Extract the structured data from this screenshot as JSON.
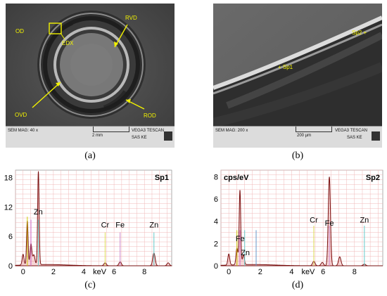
{
  "panels": {
    "a": {
      "caption": "(a)",
      "labels": {
        "od": "OD",
        "edx": "EDX",
        "rvd": "RVD",
        "ovd": "OVD",
        "rod": "ROD"
      },
      "bar": {
        "mag": "SEM MAG: 40 x",
        "scale": "2 mm",
        "device": "VEGA3 TESCAN",
        "lab": "SAS KE"
      }
    },
    "b": {
      "caption": "(b)",
      "labels": {
        "sp1": "+ Sp1",
        "sp2": "Sp2 +"
      },
      "bar": {
        "mag": "SEM MAG: 200 x",
        "scale": "200 µm",
        "device": "VEGA3 TESCAN",
        "lab": "SAS KE"
      }
    },
    "c": {
      "caption": "(c)"
    },
    "d": {
      "caption": "(d)"
    }
  },
  "chart_data": [
    {
      "type": "line",
      "panel": "c",
      "title": "Sp1",
      "xlabel": "keV",
      "ylabel": "",
      "xlim": [
        -0.5,
        9.8
      ],
      "ylim": [
        0,
        19.5
      ],
      "xticks": [
        0,
        2,
        4,
        6,
        8
      ],
      "yticks": [
        0,
        6,
        12,
        18
      ],
      "peaks": [
        {
          "x": 0.0,
          "y": 2.2,
          "w": 0.06
        },
        {
          "x": 0.28,
          "y": 9.0,
          "w": 0.05
        },
        {
          "x": 0.52,
          "y": 4.3,
          "w": 0.06
        },
        {
          "x": 0.71,
          "y": 2.0,
          "w": 0.07
        },
        {
          "x": 1.01,
          "y": 19.0,
          "w": 0.05
        },
        {
          "x": 5.41,
          "y": 0.6,
          "w": 0.08
        },
        {
          "x": 6.4,
          "y": 0.8,
          "w": 0.08
        },
        {
          "x": 8.63,
          "y": 2.6,
          "w": 0.08
        },
        {
          "x": 9.57,
          "y": 0.6,
          "w": 0.08
        }
      ],
      "element_labels": [
        {
          "text": "Zn",
          "x": 1.0,
          "y": 10.5
        },
        {
          "text": "Cr",
          "x": 5.41,
          "y": 7.8
        },
        {
          "text": "Fe",
          "x": 6.4,
          "y": 7.8
        },
        {
          "text": "Zn",
          "x": 8.63,
          "y": 7.8
        }
      ],
      "markers": [
        {
          "x": 0.28,
          "top": 10.0,
          "color": "#cccc00"
        },
        {
          "x": 0.52,
          "top": 9.4,
          "color": "#cc66cc"
        },
        {
          "x": 1.01,
          "top": 9.4,
          "color": "#66cccc"
        },
        {
          "x": 5.41,
          "top": 6.8,
          "color": "#dddd55"
        },
        {
          "x": 6.4,
          "top": 6.8,
          "color": "#cc88cc"
        },
        {
          "x": 8.63,
          "top": 6.8,
          "color": "#66cccc"
        }
      ]
    },
    {
      "type": "line",
      "panel": "d",
      "title": "Sp2",
      "xlabel": "keV",
      "ylabel": "cps/eV",
      "xlim": [
        -0.5,
        9.8
      ],
      "ylim": [
        0,
        8.6
      ],
      "xticks": [
        0,
        2,
        4,
        6,
        8
      ],
      "yticks": [
        0,
        2,
        4,
        6,
        8
      ],
      "peaks": [
        {
          "x": 0.0,
          "y": 1.0,
          "w": 0.06
        },
        {
          "x": 0.52,
          "y": 1.5,
          "w": 0.06
        },
        {
          "x": 0.71,
          "y": 6.7,
          "w": 0.05
        },
        {
          "x": 0.93,
          "y": 0.9,
          "w": 0.06
        },
        {
          "x": 5.41,
          "y": 0.4,
          "w": 0.08
        },
        {
          "x": 5.95,
          "y": 0.3,
          "w": 0.08
        },
        {
          "x": 6.4,
          "y": 8.0,
          "w": 0.07
        },
        {
          "x": 7.06,
          "y": 0.8,
          "w": 0.08
        },
        {
          "x": 8.63,
          "y": 0.15,
          "w": 0.08
        }
      ],
      "element_labels": [
        {
          "text": "Cr",
          "x": 5.41,
          "y": 3.9
        },
        {
          "text": "Fe",
          "x": 6.4,
          "y": 3.6
        },
        {
          "text": "Zn",
          "x": 8.63,
          "y": 3.9
        },
        {
          "text": "Fe",
          "x": 0.72,
          "y": 2.2
        },
        {
          "text": "Zn",
          "x": 1.05,
          "y": 0.95
        }
      ],
      "markers": [
        {
          "x": 0.52,
          "top": 3.2,
          "color": "#cccc00"
        },
        {
          "x": 0.71,
          "top": 3.2,
          "color": "#cc66cc"
        },
        {
          "x": 1.01,
          "top": 3.2,
          "color": "#66cccc"
        },
        {
          "x": 1.74,
          "top": 3.2,
          "color": "#6699cc"
        },
        {
          "x": 5.41,
          "top": 3.6,
          "color": "#dddd55"
        },
        {
          "x": 6.4,
          "top": 3.6,
          "color": "#cc88cc"
        },
        {
          "x": 8.63,
          "top": 3.6,
          "color": "#66cccc"
        }
      ]
    }
  ],
  "colors": {
    "annotation": "#f2f200",
    "spectrum": "#7a1010",
    "spectrum_fill": "#cc1a1a",
    "grid": "#f0b8b8",
    "plot_bg": "#ffffff"
  }
}
